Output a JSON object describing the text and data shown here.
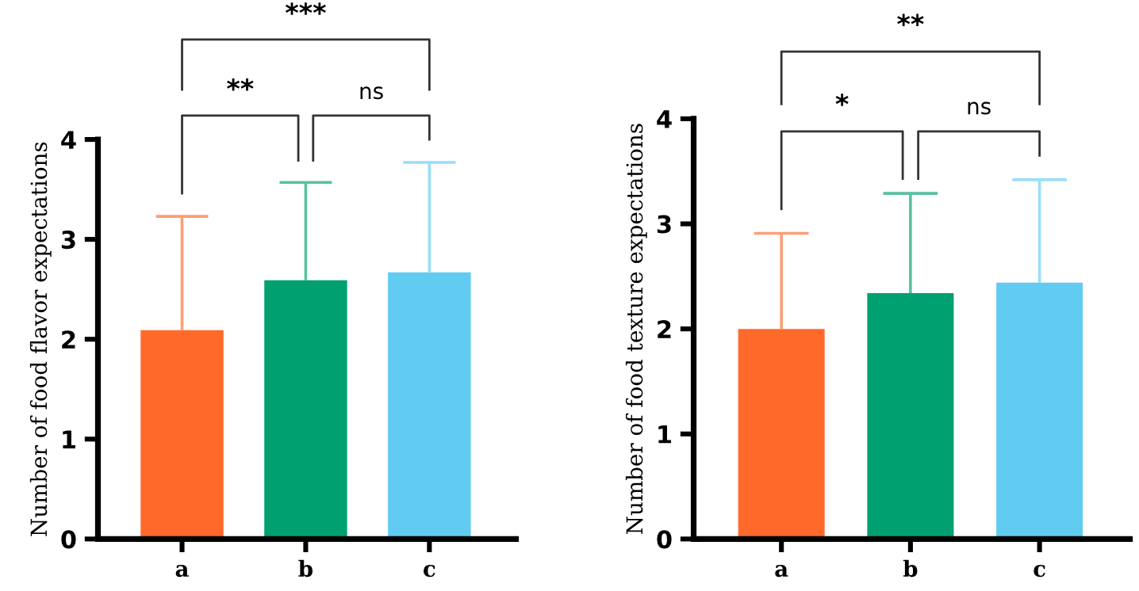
{
  "chart_data": [
    {
      "type": "bar",
      "ylabel": "Number of food flavor expectations",
      "categories": [
        "a",
        "b",
        "c"
      ],
      "values": [
        2.09,
        2.59,
        2.67
      ],
      "colors": [
        "#ff6a2b",
        "#00a070",
        "#62cbf2"
      ],
      "errors": [
        [
          2.09,
          3.23
        ],
        [
          2.59,
          3.57
        ],
        [
          2.67,
          3.77
        ]
      ],
      "ylim": [
        0,
        4
      ],
      "yticks": [
        0,
        1,
        2,
        3,
        4
      ],
      "grid": false,
      "legend": false,
      "annotations": [
        "***",
        "**",
        "ns"
      ]
    },
    {
      "type": "bar",
      "ylabel": "Number of food texture expectations",
      "categories": [
        "a",
        "b",
        "c"
      ],
      "values": [
        2.0,
        2.34,
        2.44
      ],
      "colors": [
        "#ff6a2b",
        "#00a070",
        "#62cbf2"
      ],
      "errors": [
        [
          2.0,
          2.91
        ],
        [
          2.34,
          3.29
        ],
        [
          2.44,
          3.42
        ]
      ],
      "ylim": [
        0,
        4
      ],
      "yticks": [
        0,
        1,
        2,
        3,
        4
      ],
      "grid": false,
      "legend": false,
      "annotations": [
        "**",
        "*",
        "ns"
      ]
    }
  ]
}
